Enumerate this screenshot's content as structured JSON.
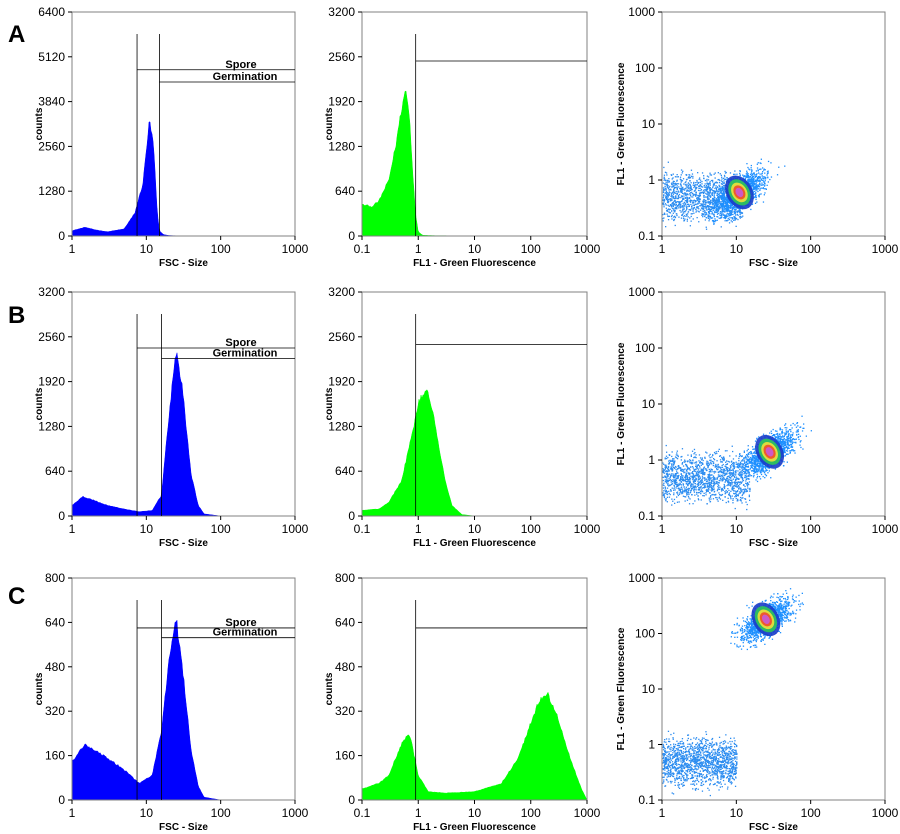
{
  "figure": {
    "row_labels": [
      "A",
      "B",
      "C"
    ]
  },
  "chart_data": [
    {
      "panel": "A-size",
      "type": "area",
      "xscale": "log",
      "xlim": [
        1,
        1000
      ],
      "ylim": [
        0,
        6400
      ],
      "xticks": [
        "1",
        "10",
        "100",
        "1000"
      ],
      "yticks": [
        "0",
        "1280",
        "2560",
        "3840",
        "5120",
        "6400"
      ],
      "xlabel": "FSC - Size",
      "ylabel": "counts",
      "fill_color": "#0000ff",
      "series": [
        {
          "x": [
            1,
            1.5,
            2,
            3,
            5,
            7,
            9,
            11,
            12.5,
            14,
            15,
            17,
            20,
            30
          ],
          "values": [
            150,
            250,
            180,
            120,
            200,
            650,
            1500,
            3300,
            2600,
            700,
            150,
            40,
            15,
            0
          ]
        }
      ],
      "gates": [
        {
          "label": "Spore",
          "x_from": 7.5,
          "x_to": 1000,
          "y": 4750
        },
        {
          "label": "Germination",
          "x_from": 15,
          "x_to": 1000,
          "y": 4400
        }
      ]
    },
    {
      "panel": "A-fluorescence",
      "type": "area",
      "xscale": "log",
      "xlim": [
        0.1,
        1000
      ],
      "ylim": [
        0,
        3200
      ],
      "xticks": [
        "0.1",
        "1",
        "10",
        "100",
        "1000"
      ],
      "yticks": [
        "0",
        "640",
        "1280",
        "1920",
        "2560",
        "3200"
      ],
      "xlabel": "FL1 - Green Fluorescence",
      "ylabel": "counts",
      "fill_color": "#00ff00",
      "series": [
        {
          "x": [
            0.1,
            0.15,
            0.2,
            0.3,
            0.4,
            0.5,
            0.6,
            0.7,
            0.8,
            0.9,
            1.0,
            1.2,
            2,
            10,
            1000
          ],
          "values": [
            450,
            420,
            500,
            800,
            1300,
            1800,
            2100,
            1700,
            900,
            300,
            60,
            10,
            5,
            0,
            0
          ]
        }
      ],
      "gates": [
        {
          "label": "",
          "x_from": 0.9,
          "x_to": 1000,
          "y": 2500
        }
      ]
    },
    {
      "panel": "A-scatter",
      "type": "scatter",
      "xscale": "log",
      "yscale": "log",
      "xlim": [
        1,
        1000
      ],
      "ylim": [
        0.1,
        1000
      ],
      "xticks": [
        "1",
        "10",
        "100",
        "1000"
      ],
      "yticks": [
        "0.1",
        "1",
        "10",
        "100",
        "1000"
      ],
      "xlabel": "FSC - Size",
      "ylabel": "FL1 - Green Fluorescence",
      "clusters": [
        {
          "x_from": 1,
          "x_to": 12,
          "y_from": 0.25,
          "y_to": 1.0,
          "density": "low"
        },
        {
          "cx": 11,
          "cy": 0.6,
          "density": "high"
        }
      ]
    },
    {
      "panel": "B-size",
      "type": "area",
      "xscale": "log",
      "xlim": [
        1,
        1000
      ],
      "ylim": [
        0,
        3200
      ],
      "xticks": [
        "1",
        "10",
        "100",
        "1000"
      ],
      "yticks": [
        "0",
        "640",
        "1280",
        "1920",
        "2560",
        "3200"
      ],
      "xlabel": "FSC - Size",
      "ylabel": "counts",
      "fill_color": "#0000ff",
      "series": [
        {
          "x": [
            1,
            1.4,
            2,
            3,
            5,
            8,
            12,
            16,
            20,
            25,
            30,
            40,
            50,
            60,
            100
          ],
          "values": [
            150,
            280,
            220,
            150,
            100,
            60,
            80,
            300,
            1400,
            2350,
            1900,
            600,
            150,
            30,
            0
          ]
        }
      ],
      "gates": [
        {
          "label": "Spore",
          "x_from": 7.5,
          "x_to": 1000,
          "y": 2400
        },
        {
          "label": "Germination",
          "x_from": 16,
          "x_to": 1000,
          "y": 2250
        }
      ]
    },
    {
      "panel": "B-fluorescence",
      "type": "area",
      "xscale": "log",
      "xlim": [
        0.1,
        1000
      ],
      "ylim": [
        0,
        3200
      ],
      "xticks": [
        "0.1",
        "1",
        "10",
        "100",
        "1000"
      ],
      "yticks": [
        "0",
        "640",
        "1280",
        "1920",
        "2560",
        "3200"
      ],
      "xlabel": "FL1 - Green Fluorescence",
      "ylabel": "counts",
      "fill_color": "#00ff00",
      "series": [
        {
          "x": [
            0.1,
            0.2,
            0.3,
            0.5,
            0.7,
            1.0,
            1.3,
            1.6,
            2,
            3,
            4,
            6,
            10,
            1000
          ],
          "values": [
            80,
            100,
            200,
            500,
            1000,
            1600,
            1800,
            1700,
            1300,
            500,
            150,
            20,
            0,
            0
          ]
        }
      ],
      "gates": [
        {
          "label": "",
          "x_from": 0.9,
          "x_to": 1000,
          "y": 2450
        }
      ]
    },
    {
      "panel": "B-scatter",
      "type": "scatter",
      "xscale": "log",
      "yscale": "log",
      "xlim": [
        1,
        1000
      ],
      "ylim": [
        0.1,
        1000
      ],
      "xticks": [
        "1",
        "10",
        "100",
        "1000"
      ],
      "yticks": [
        "0.1",
        "1",
        "10",
        "100",
        "1000"
      ],
      "xlabel": "FSC - Size",
      "ylabel": "FL1 - Green Fluorescence",
      "clusters": [
        {
          "x_from": 1,
          "x_to": 15,
          "y_from": 0.25,
          "y_to": 1.0,
          "density": "low"
        },
        {
          "cx": 28,
          "cy": 1.4,
          "density": "high"
        }
      ]
    },
    {
      "panel": "C-size",
      "type": "area",
      "xscale": "log",
      "xlim": [
        1,
        1000
      ],
      "ylim": [
        0,
        800
      ],
      "xticks": [
        "1",
        "10",
        "100",
        "1000"
      ],
      "yticks": [
        "0",
        "160",
        "320",
        "480",
        "640",
        "800"
      ],
      "xlabel": "FSC - Size",
      "ylabel": "counts",
      "fill_color": "#0000ff",
      "series": [
        {
          "x": [
            1,
            1.5,
            2,
            3,
            5,
            8,
            12,
            16,
            20,
            25,
            30,
            40,
            50,
            60,
            100
          ],
          "values": [
            140,
            200,
            180,
            150,
            110,
            60,
            90,
            250,
            500,
            660,
            500,
            180,
            50,
            10,
            0
          ]
        }
      ],
      "gates": [
        {
          "label": "Spore",
          "x_from": 7.5,
          "x_to": 1000,
          "y": 620
        },
        {
          "label": "Germination",
          "x_from": 16,
          "x_to": 1000,
          "y": 585
        }
      ]
    },
    {
      "panel": "C-fluorescence",
      "type": "area",
      "xscale": "log",
      "xlim": [
        0.1,
        1000
      ],
      "ylim": [
        0,
        800
      ],
      "xticks": [
        "0.1",
        "1",
        "10",
        "100",
        "1000"
      ],
      "yticks": [
        "0",
        "160",
        "320",
        "480",
        "640",
        "800"
      ],
      "xlabel": "FL1 - Green Fluorescence",
      "ylabel": "counts",
      "fill_color": "#00ff00",
      "series": [
        {
          "x": [
            0.1,
            0.2,
            0.3,
            0.5,
            0.7,
            1.0,
            1.5,
            3,
            10,
            30,
            60,
            100,
            150,
            200,
            300,
            500,
            800,
            1000
          ],
          "values": [
            40,
            60,
            90,
            200,
            240,
            90,
            30,
            25,
            30,
            60,
            150,
            280,
            370,
            380,
            300,
            150,
            40,
            0
          ]
        }
      ],
      "gates": [
        {
          "label": "",
          "x_from": 0.9,
          "x_to": 1000,
          "y": 620
        }
      ]
    },
    {
      "panel": "C-scatter",
      "type": "scatter",
      "xscale": "log",
      "yscale": "log",
      "xlim": [
        1,
        1000
      ],
      "ylim": [
        0.1,
        1000
      ],
      "xticks": [
        "1",
        "10",
        "100",
        "1000"
      ],
      "yticks": [
        "0.1",
        "1",
        "10",
        "100",
        "1000"
      ],
      "xlabel": "FSC - Size",
      "ylabel": "FL1 - Green Fluorescence",
      "clusters": [
        {
          "x_from": 1,
          "x_to": 10,
          "y_from": 0.25,
          "y_to": 1.0,
          "density": "low"
        },
        {
          "cx": 25,
          "cy": 180,
          "density": "high"
        }
      ]
    }
  ]
}
